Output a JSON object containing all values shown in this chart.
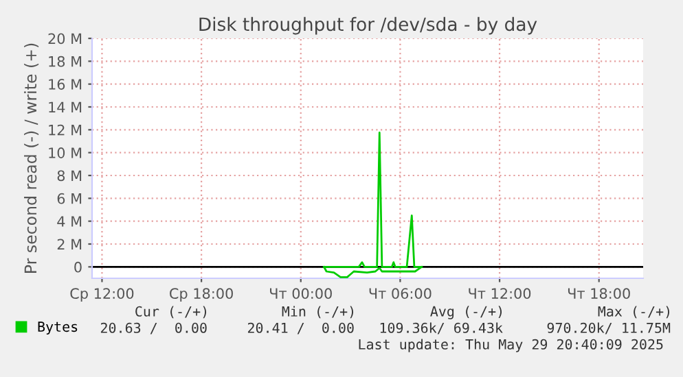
{
  "chart_data": {
    "type": "line",
    "title": "Disk throughput for /dev/sda - by day",
    "ylabel": "Pr second read (-) / write (+)",
    "xlim": [
      "2025-05-28T11:24",
      "2025-05-29T20:40"
    ],
    "xticks": [
      {
        "value": "2025-05-28T12:00",
        "label": "Ср 12:00"
      },
      {
        "value": "2025-05-28T18:00",
        "label": "Ср 18:00"
      },
      {
        "value": "2025-05-29T00:00",
        "label": "Чт 00:00"
      },
      {
        "value": "2025-05-29T06:00",
        "label": "Чт 06:00"
      },
      {
        "value": "2025-05-29T12:00",
        "label": "Чт 12:00"
      },
      {
        "value": "2025-05-29T18:00",
        "label": "Чт 18:00"
      }
    ],
    "ylim": [
      -1,
      20
    ],
    "yticks": [
      {
        "value": 0,
        "label": "0"
      },
      {
        "value": 2,
        "label": "2 M"
      },
      {
        "value": 4,
        "label": "4 M"
      },
      {
        "value": 6,
        "label": "6 M"
      },
      {
        "value": 8,
        "label": "8 M"
      },
      {
        "value": 10,
        "label": "10 M"
      },
      {
        "value": 12,
        "label": "12 M"
      },
      {
        "value": 14,
        "label": "14 M"
      },
      {
        "value": 16,
        "label": "16 M"
      },
      {
        "value": 18,
        "label": "18 M"
      },
      {
        "value": 20,
        "label": "20 M"
      }
    ],
    "grid": true,
    "legend": "bottom left",
    "ref_lines": [
      {
        "axis": "y",
        "value": 0,
        "color": "#000000"
      }
    ],
    "series": [
      {
        "color": "#00cc00",
        "x": [
          "2025-05-29T01:24",
          "2025-05-29T01:33",
          "2025-05-29T02:00",
          "2025-05-29T02:24",
          "2025-05-29T02:48",
          "2025-05-29T03:12",
          "2025-05-29T04:00",
          "2025-05-29T04:30",
          "2025-05-29T04:45",
          "2025-05-29T04:54",
          "2025-05-29T06:00",
          "2025-05-29T06:54",
          "2025-05-29T07:06",
          "2025-05-29T07:18"
        ],
        "values": [
          0,
          -0.4,
          -0.5,
          -0.9,
          -0.9,
          -0.4,
          -0.5,
          -0.4,
          -0.1,
          -0.4,
          -0.4,
          -0.4,
          -0.2,
          0
        ]
      },
      {
        "name": "Bytes",
        "color": "#00cc00",
        "x": [
          "2025-05-29T01:24",
          "2025-05-29T03:30",
          "2025-05-29T03:42",
          "2025-05-29T03:51",
          "2025-05-29T04:36",
          "2025-05-29T04:45",
          "2025-05-29T04:54",
          "2025-05-29T05:30",
          "2025-05-29T05:36",
          "2025-05-29T05:42",
          "2025-05-29T06:24",
          "2025-05-29T06:42",
          "2025-05-29T06:51",
          "2025-05-29T07:18"
        ],
        "values": [
          0,
          0,
          0.4,
          0,
          0,
          11.75,
          0,
          0,
          0.4,
          0,
          0,
          4.5,
          0,
          0
        ]
      }
    ],
    "annotations": [
      "Cur (-/+)",
      "Min (-/+)",
      "Avg (-/+)",
      "Max (-/+)",
      "20.63 /  0.00",
      "20.41 /  0.00",
      "109.36k/ 69.43k",
      "970.20k/ 11.75M",
      "Last update: Thu May 29 20:40:09 2025"
    ]
  }
}
